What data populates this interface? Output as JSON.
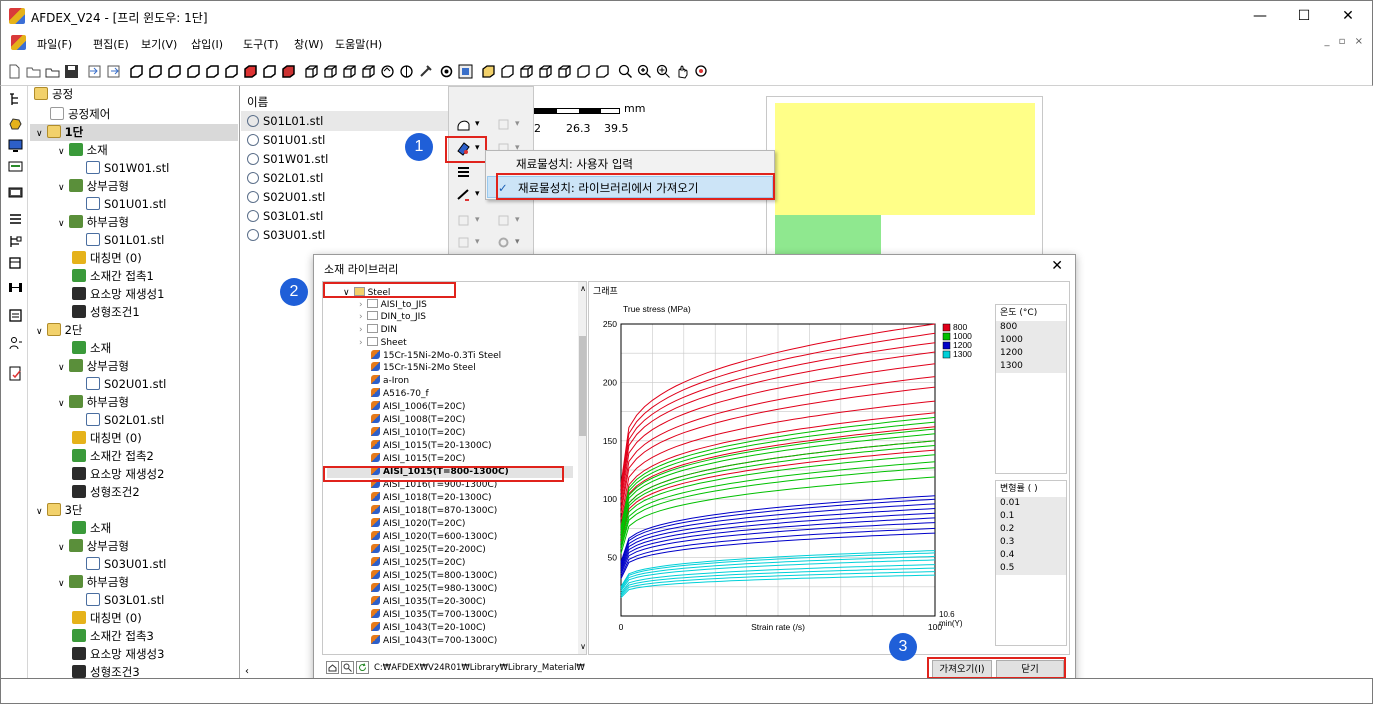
{
  "app": {
    "title": "AFDEX_V24 - [프리 윈도우: 1단]",
    "min": "—",
    "max": "☐",
    "close": "✕",
    "mdi_controls": "_ ▫ ×"
  },
  "menu": [
    "파일(F)",
    "편집(E)",
    "보기(V)",
    "삽입(I)",
    "도구(T)",
    "창(W)",
    "도움말(H)"
  ],
  "tree": [
    {
      "label": "공정",
      "icon": "folder-open-icon"
    },
    {
      "label": "공정제어",
      "icon": "folder-icon"
    },
    {
      "label": "1단",
      "icon": "folder-open-icon"
    },
    {
      "label": "소재",
      "icon": "material-icon"
    },
    {
      "label": "S01W01.stl",
      "icon": "part-icon"
    },
    {
      "label": "상부금형",
      "icon": "upper-die-icon"
    },
    {
      "label": "S01U01.stl",
      "icon": "part-icon"
    },
    {
      "label": "하부금형",
      "icon": "lower-die-icon"
    },
    {
      "label": "S01L01.stl",
      "icon": "part-icon"
    },
    {
      "label": "대칭면 (0)",
      "icon": "symmetry-icon"
    },
    {
      "label": "소재간 접촉1",
      "icon": "contact-icon"
    },
    {
      "label": "요소망 재생성1",
      "icon": "remesh-icon"
    },
    {
      "label": "성형조건1",
      "icon": "condition-icon"
    },
    {
      "label": "2단",
      "icon": "folder-open-icon"
    },
    {
      "label": "소재",
      "icon": "material-icon"
    },
    {
      "label": "상부금형",
      "icon": "upper-die-icon"
    },
    {
      "label": "S02U01.stl",
      "icon": "part-icon"
    },
    {
      "label": "하부금형",
      "icon": "lower-die-icon"
    },
    {
      "label": "S02L01.stl",
      "icon": "part-icon"
    },
    {
      "label": "대칭면 (0)",
      "icon": "symmetry-icon"
    },
    {
      "label": "소재간 접촉2",
      "icon": "contact-icon"
    },
    {
      "label": "요소망 재생성2",
      "icon": "remesh-icon"
    },
    {
      "label": "성형조건2",
      "icon": "condition-icon"
    },
    {
      "label": "3단",
      "icon": "folder-open-icon"
    },
    {
      "label": "소재",
      "icon": "material-icon"
    },
    {
      "label": "상부금형",
      "icon": "upper-die-icon"
    },
    {
      "label": "S03U01.stl",
      "icon": "part-icon"
    },
    {
      "label": "하부금형",
      "icon": "lower-die-icon"
    },
    {
      "label": "S03L01.stl",
      "icon": "part-icon"
    },
    {
      "label": "대칭면 (0)",
      "icon": "symmetry-icon"
    },
    {
      "label": "소재간 접촉3",
      "icon": "contact-icon"
    },
    {
      "label": "요소망 재생성3",
      "icon": "remesh-icon"
    },
    {
      "label": "성형조건3",
      "icon": "condition-icon"
    }
  ],
  "filelist": {
    "header": "이름",
    "files": [
      "S01L01.stl",
      "S01U01.stl",
      "S01W01.stl",
      "S02L01.stl",
      "S02U01.stl",
      "S03L01.stl",
      "S03U01.stl"
    ]
  },
  "ruler": {
    "unit": "mm",
    "ticks": [
      "2",
      "26.3",
      "39.5"
    ]
  },
  "context_menu": {
    "items": [
      "재료물성치: 사용자 입력",
      "재료물성치: 라이브러리에서 가져오기"
    ],
    "checked_index": 1
  },
  "steps": [
    "1",
    "2",
    "3"
  ],
  "dialog": {
    "title": "소재 라이브러리",
    "close": "✕",
    "tab": "그래프",
    "library": {
      "root": "Steel",
      "folders": [
        "AISI_to_JIS",
        "DIN_to_JIS",
        "DIN",
        "Sheet"
      ],
      "materials": [
        "15Cr-15Ni-2Mo-0.3Ti Steel",
        "15Cr-15Ni-2Mo Steel",
        "a-Iron",
        "A516-70_f",
        "AISI_1006(T=20C)",
        "AISI_1008(T=20C)",
        "AISI_1010(T=20C)",
        "AISI_1015(T=20-1300C)",
        "AISI_1015(T=20C)",
        "AISI_1015(T=800-1300C)",
        "AISI_1016(T=900-1300C)",
        "AISI_1018(T=20-1300C)",
        "AISI_1018(T=870-1300C)",
        "AISI_1020(T=20C)",
        "AISI_1020(T=600-1300C)",
        "AISI_1025(T=20-200C)",
        "AISI_1025(T=20C)",
        "AISI_1025(T=800-1300C)",
        "AISI_1025(T=980-1300C)",
        "AISI_1035(T=20-300C)",
        "AISI_1035(T=700-1300C)",
        "AISI_1043(T=20-100C)",
        "AISI_1043(T=700-1300C)"
      ],
      "selected_index": 9,
      "path": "C:₩AFDEX₩V24R01₩Library₩Library_Material₩"
    },
    "temp_list": {
      "header": "온도 (°C)",
      "values": [
        "800",
        "1000",
        "1200",
        "1300"
      ]
    },
    "strain_list": {
      "header": "변형률 ( )",
      "values": [
        "0.01",
        "0.1",
        "0.2",
        "0.3",
        "0.4",
        "0.5"
      ]
    },
    "buttons": {
      "import": "가져오기(I)",
      "close": "닫기"
    }
  },
  "chart_data": {
    "type": "line",
    "title": "True stress (MPa)",
    "xlabel": "Strain rate (/s)",
    "x_ticks": [
      "0",
      "100"
    ],
    "xlim": [
      0,
      100
    ],
    "ylim": [
      0,
      250
    ],
    "y_ticks": [
      "250",
      "200",
      "150",
      "100",
      "50"
    ],
    "corner_label": "10.6 min(Y)",
    "grid": true,
    "legend_position": "top-right",
    "series": [
      {
        "name": "800",
        "color": "#e0001a",
        "end_values": [
          250,
          242,
          234,
          226,
          216,
          205,
          196,
          184,
          174,
          162,
          150,
          142
        ]
      },
      {
        "name": "1000",
        "color": "#00c000",
        "end_values": [
          170,
          166,
          160,
          156,
          150,
          146,
          138,
          132,
          127,
          119
        ]
      },
      {
        "name": "1200",
        "color": "#0000c8",
        "end_values": [
          103,
          100,
          96,
          92,
          88,
          84,
          80,
          75,
          71
        ]
      },
      {
        "name": "1300",
        "color": "#00d0d8",
        "end_values": [
          56,
          54,
          51,
          48,
          44,
          41,
          38,
          35
        ]
      }
    ]
  }
}
